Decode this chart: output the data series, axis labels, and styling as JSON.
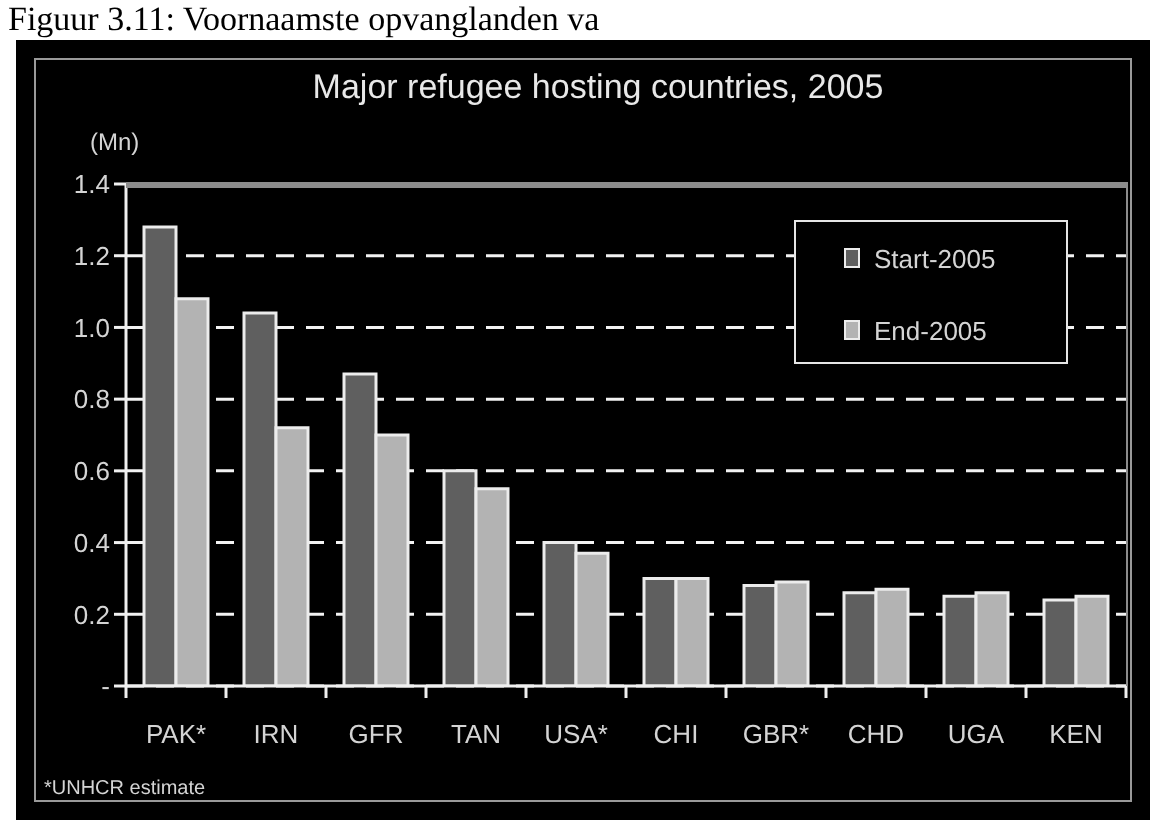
{
  "chart_data": {
    "type": "bar",
    "title": "Figuur 3.11: Voornaamste opvanglanden va",
    "subtitle": "Major refugee hosting countries, 2005",
    "ylabel": "(Mn)",
    "annotations": [
      "*UNHCR estimate"
    ],
    "categories": [
      "PAK*",
      "IRN",
      "GFR",
      "TAN",
      "USA*",
      "CHI",
      "GBR*",
      "CHD",
      "UGA",
      "KEN"
    ],
    "series": [
      {
        "name": "Start-2005",
        "color": "#5f5f5f",
        "values": [
          1.28,
          1.04,
          0.87,
          0.6,
          0.4,
          0.3,
          0.28,
          0.26,
          0.25,
          0.24
        ]
      },
      {
        "name": "End-2005",
        "color": "#b3b3b3",
        "values": [
          1.08,
          0.72,
          0.7,
          0.55,
          0.37,
          0.3,
          0.29,
          0.27,
          0.26,
          0.25
        ]
      }
    ],
    "ylim": [
      0,
      1.4
    ],
    "yticks": [
      {
        "value": 0,
        "label": "-"
      },
      0.2,
      0.4,
      0.6,
      0.8,
      {
        "value": 1,
        "label": "1.0"
      },
      1.2,
      1.4
    ],
    "grid": "y",
    "legend": "top right"
  }
}
